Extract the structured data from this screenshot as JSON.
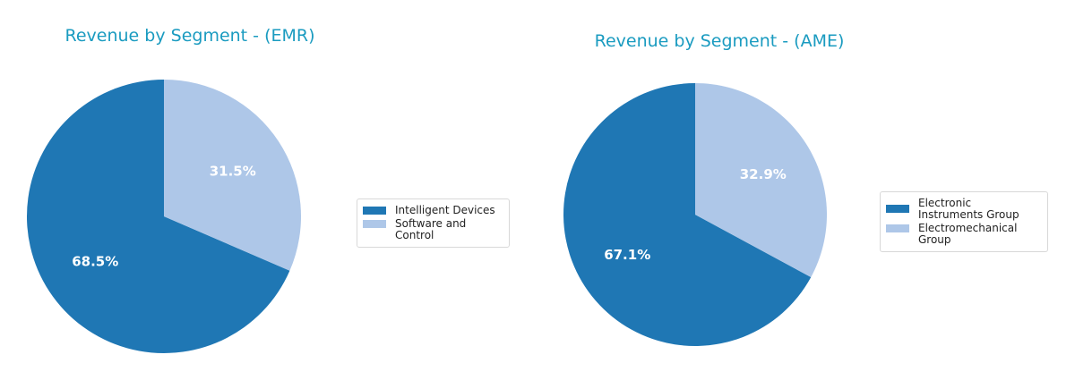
{
  "chart_data": [
    {
      "type": "pie",
      "title": "Revenue by Segment - (EMR)",
      "labels": [
        "Intelligent Devices",
        "Software and Control"
      ],
      "values": [
        68.5,
        31.5
      ],
      "pct_labels": [
        "68.5%",
        "31.5%"
      ],
      "colors": [
        "#1f77b4",
        "#aec7e8"
      ],
      "start_angle": 90,
      "legend_position": "right"
    },
    {
      "type": "pie",
      "title": "Revenue by Segment - (AME)",
      "labels": [
        "Electronic Instruments Group",
        "Electromechanical Group"
      ],
      "values": [
        67.1,
        32.9
      ],
      "pct_labels": [
        "67.1%",
        "32.9%"
      ],
      "colors": [
        "#1f77b4",
        "#aec7e8"
      ],
      "start_angle": 90,
      "legend_position": "right"
    }
  ]
}
